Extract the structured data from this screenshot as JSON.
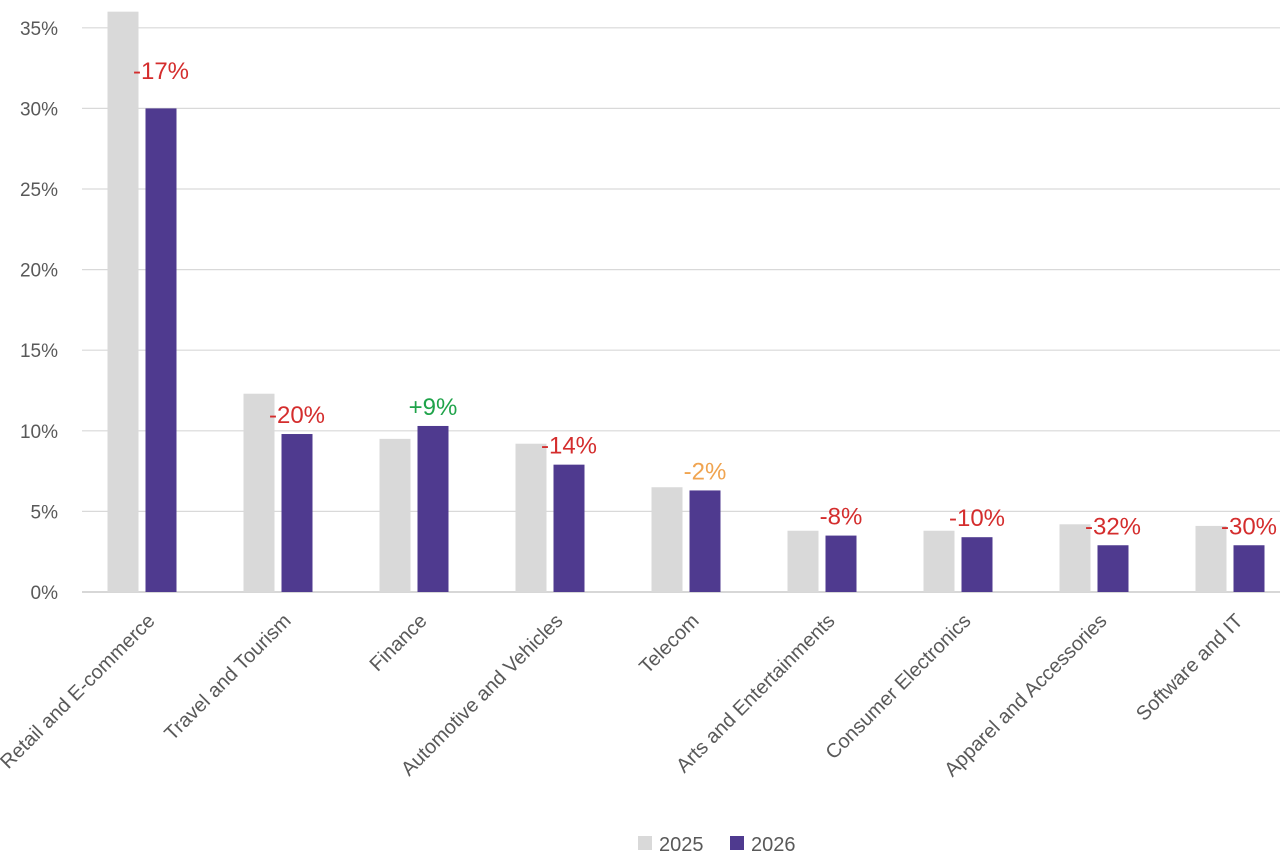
{
  "chart_data": {
    "type": "bar",
    "categories": [
      "Retail and E-commerce",
      "Travel and Tourism",
      "Finance",
      "Automotive and Vehicles",
      "Telecom",
      "Arts and Entertainments",
      "Consumer Electronics",
      "Apparel and Accessories",
      "Software and IT"
    ],
    "series": [
      {
        "name": "2025",
        "color": "#d9d9d9",
        "values": [
          36,
          12.3,
          9.5,
          9.2,
          6.5,
          3.8,
          3.8,
          4.2,
          4.1
        ]
      },
      {
        "name": "2026",
        "color": "#4f3a8f",
        "values": [
          30,
          9.8,
          10.3,
          7.9,
          6.3,
          3.5,
          3.4,
          2.9,
          2.9
        ]
      }
    ],
    "change_labels": [
      {
        "text": "-17%",
        "color": "#d42d2d"
      },
      {
        "text": "-20%",
        "color": "#d42d2d"
      },
      {
        "text": "+9%",
        "color": "#1fa34a"
      },
      {
        "text": "-14%",
        "color": "#d42d2d"
      },
      {
        "text": "-2%",
        "color": "#f0a450"
      },
      {
        "text": "-8%",
        "color": "#d42d2d"
      },
      {
        "text": "-10%",
        "color": "#d42d2d"
      },
      {
        "text": "-32%",
        "color": "#d42d2d"
      },
      {
        "text": "-30%",
        "color": "#d42d2d"
      }
    ],
    "y_ticks": [
      "0%",
      "5%",
      "10%",
      "15%",
      "20%",
      "25%",
      "30%",
      "35%"
    ],
    "ylim": [
      0,
      36
    ],
    "grid": true,
    "legend": "bottom-center",
    "title": "",
    "xlabel": "",
    "ylabel": ""
  }
}
